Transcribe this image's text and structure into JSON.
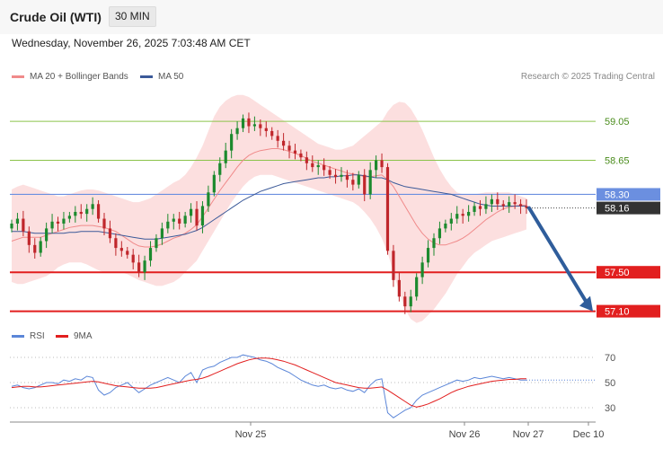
{
  "header": {
    "title": "Crude Oil (WTI)",
    "interval": "30 MIN",
    "datetime": "Wednesday, November 26, 2025 7:03:48 AM CET"
  },
  "legend": [
    {
      "label": "MA 20 + Bollinger Bands",
      "color": "#f08a8a"
    },
    {
      "label": "MA 50",
      "color": "#3c5a99"
    }
  ],
  "credit": "Research © 2025 Trading Central",
  "rsi_legend": [
    {
      "label": "RSI",
      "color": "#5b86d8"
    },
    {
      "label": "9MA",
      "color": "#e21f1f"
    }
  ],
  "colors": {
    "up": "#1c8a2e",
    "down": "#c0262b",
    "band": "#fcd9d9",
    "ma20": "#f08a8a",
    "ma50": "#3c5a99",
    "resistance": "#8bc34a",
    "support": "#e21f1f",
    "pivot": "#6b8fe0",
    "arrow": "#2f5d9b"
  },
  "chart_data": [
    {
      "type": "candlestick",
      "title": "Crude Oil (WTI)",
      "interval": "30 MIN",
      "x_ticks": [
        "Nov 25",
        "Nov 26",
        "Nov 27",
        "Dec 10"
      ],
      "ylim": [
        56.93,
        59.42
      ],
      "levels": [
        {
          "value": 59.05,
          "label": "59.05",
          "kind": "resistance"
        },
        {
          "value": 58.65,
          "label": "58.65",
          "kind": "resistance"
        },
        {
          "value": 58.3,
          "label": "58.30",
          "kind": "pivot"
        },
        {
          "value": 57.5,
          "label": "57.50",
          "kind": "support"
        },
        {
          "value": 57.1,
          "label": "57.10",
          "kind": "support"
        }
      ],
      "last_price": {
        "value": 58.16,
        "label": "58.16"
      },
      "forecast_arrow": {
        "from": 58.16,
        "to": 57.1
      },
      "closes": [
        58.0,
        58.05,
        57.92,
        57.78,
        57.7,
        57.82,
        57.95,
        58.02,
        58.0,
        58.05,
        58.08,
        58.12,
        58.1,
        58.15,
        58.2,
        58.05,
        57.95,
        57.85,
        57.75,
        57.72,
        57.68,
        57.6,
        57.5,
        57.62,
        57.75,
        57.85,
        57.95,
        58.02,
        58.05,
        58.0,
        58.08,
        58.15,
        57.98,
        58.18,
        58.32,
        58.5,
        58.62,
        58.75,
        58.92,
        58.98,
        59.08,
        59.0,
        59.02,
        58.98,
        58.95,
        58.9,
        58.85,
        58.8,
        58.75,
        58.72,
        58.68,
        58.62,
        58.58,
        58.6,
        58.55,
        58.5,
        58.48,
        58.5,
        58.45,
        58.4,
        58.5,
        58.3,
        58.55,
        58.65,
        58.58,
        57.72,
        57.42,
        57.25,
        57.15,
        57.25,
        57.45,
        57.6,
        57.75,
        57.85,
        57.95,
        58.0,
        58.05,
        58.1,
        58.08,
        58.12,
        58.18,
        58.15,
        58.2,
        58.25,
        58.2,
        58.18,
        58.22,
        58.2,
        58.18,
        58.16
      ],
      "ma20": [
        57.82,
        57.84,
        57.86,
        57.86,
        57.86,
        57.86,
        57.88,
        57.9,
        57.92,
        57.94,
        57.96,
        57.97,
        57.98,
        57.98,
        57.98,
        57.97,
        57.96,
        57.94,
        57.92,
        57.88,
        57.84,
        57.8,
        57.77,
        57.76,
        57.76,
        57.77,
        57.79,
        57.82,
        57.85,
        57.87,
        57.9,
        57.94,
        57.99,
        58.07,
        58.16,
        58.25,
        58.34,
        58.42,
        58.5,
        58.58,
        58.65,
        58.7,
        58.73,
        58.75,
        58.76,
        58.77,
        58.77,
        58.76,
        58.74,
        58.72,
        58.7,
        58.67,
        58.64,
        58.62,
        58.6,
        58.58,
        58.56,
        58.54,
        58.52,
        58.51,
        58.5,
        58.48,
        58.48,
        58.49,
        58.5,
        58.45,
        58.38,
        58.28,
        58.18,
        58.08,
        57.98,
        57.9,
        57.84,
        57.8,
        57.78,
        57.78,
        57.8,
        57.82,
        57.85,
        57.89,
        57.94,
        57.99,
        58.04,
        58.08,
        58.12,
        58.15,
        58.17,
        58.18,
        58.19,
        58.19
      ],
      "ma50": [
        57.92,
        57.92,
        57.92,
        57.91,
        57.9,
        57.9,
        57.9,
        57.9,
        57.9,
        57.9,
        57.91,
        57.91,
        57.92,
        57.92,
        57.92,
        57.92,
        57.91,
        57.9,
        57.89,
        57.88,
        57.87,
        57.86,
        57.85,
        57.84,
        57.84,
        57.84,
        57.85,
        57.86,
        57.87,
        57.88,
        57.89,
        57.91,
        57.93,
        57.96,
        58.0,
        58.04,
        58.08,
        58.12,
        58.16,
        58.2,
        58.24,
        58.27,
        58.3,
        58.33,
        58.35,
        58.37,
        58.39,
        58.41,
        58.42,
        58.43,
        58.44,
        58.45,
        58.46,
        58.47,
        58.47,
        58.48,
        58.48,
        58.49,
        58.49,
        58.5,
        58.5,
        58.49,
        58.48,
        58.47,
        58.47,
        58.45,
        58.42,
        58.4,
        58.38,
        58.37,
        58.36,
        58.35,
        58.34,
        58.33,
        58.32,
        58.31,
        58.3,
        58.28,
        58.26,
        58.24,
        58.22,
        58.2,
        58.19,
        58.18,
        58.18,
        58.18,
        58.18,
        58.18,
        58.18,
        58.18
      ],
      "bb_upper": [
        58.35,
        58.38,
        58.4,
        58.38,
        58.36,
        58.34,
        58.32,
        58.3,
        58.28,
        58.28,
        58.3,
        58.32,
        58.34,
        58.35,
        58.35,
        58.34,
        58.32,
        58.3,
        58.28,
        58.26,
        58.24,
        58.22,
        58.22,
        58.24,
        58.26,
        58.3,
        58.34,
        58.38,
        58.42,
        58.45,
        58.5,
        58.58,
        58.68,
        58.8,
        58.95,
        59.1,
        59.2,
        59.26,
        59.3,
        59.32,
        59.32,
        59.3,
        59.26,
        59.22,
        59.18,
        59.14,
        59.1,
        59.06,
        59.02,
        58.98,
        58.94,
        58.9,
        58.86,
        58.82,
        58.8,
        58.78,
        58.76,
        58.76,
        58.78,
        58.8,
        58.85,
        58.9,
        58.95,
        59.0,
        59.05,
        59.15,
        59.22,
        59.25,
        59.24,
        59.18,
        59.08,
        58.96,
        58.82,
        58.68,
        58.56,
        58.46,
        58.38,
        58.32,
        58.3,
        58.3,
        58.3,
        58.31,
        58.32,
        58.32,
        58.32,
        58.32,
        58.32,
        58.3,
        58.28,
        58.26
      ],
      "bb_lower": [
        57.4,
        57.38,
        57.38,
        57.4,
        57.42,
        57.44,
        57.46,
        57.5,
        57.55,
        57.58,
        57.6,
        57.6,
        57.6,
        57.58,
        57.55,
        57.52,
        57.5,
        57.5,
        57.5,
        57.5,
        57.48,
        57.45,
        57.42,
        57.4,
        57.38,
        57.36,
        57.36,
        57.38,
        57.4,
        57.44,
        57.5,
        57.56,
        57.62,
        57.72,
        57.82,
        57.92,
        58.02,
        58.12,
        58.22,
        58.3,
        58.38,
        58.44,
        58.48,
        58.5,
        58.5,
        58.5,
        58.48,
        58.46,
        58.44,
        58.42,
        58.4,
        58.38,
        58.36,
        58.34,
        58.32,
        58.3,
        58.28,
        58.26,
        58.24,
        58.22,
        58.18,
        58.12,
        58.05,
        57.96,
        57.85,
        57.7,
        57.5,
        57.3,
        57.12,
        57.02,
        56.98,
        57.0,
        57.06,
        57.12,
        57.2,
        57.28,
        57.38,
        57.48,
        57.56,
        57.64,
        57.7,
        57.74,
        57.78,
        57.82,
        57.84,
        57.86,
        57.88,
        57.9,
        57.92,
        57.94
      ]
    },
    {
      "type": "line",
      "title": "RSI",
      "ylim": [
        20,
        80
      ],
      "y_ticks": [
        70,
        50,
        30
      ],
      "series": [
        {
          "name": "RSI",
          "values": [
            47,
            48,
            46,
            45,
            46,
            48,
            50,
            50,
            49,
            52,
            51,
            53,
            52,
            55,
            54,
            44,
            40,
            42,
            46,
            48,
            50,
            46,
            42,
            45,
            48,
            50,
            52,
            54,
            52,
            50,
            55,
            58,
            50,
            60,
            62,
            63,
            66,
            68,
            70,
            70,
            72,
            71,
            70,
            68,
            67,
            65,
            62,
            60,
            58,
            55,
            52,
            50,
            48,
            47,
            48,
            46,
            45,
            46,
            44,
            43,
            45,
            42,
            48,
            52,
            53,
            26,
            22,
            25,
            28,
            30,
            36,
            40,
            42,
            44,
            46,
            48,
            50,
            52,
            51,
            52,
            54,
            53,
            54,
            55,
            54,
            53,
            54,
            53,
            52,
            52
          ]
        },
        {
          "name": "9MA",
          "values": [
            46,
            46.5,
            47,
            47,
            46.5,
            46.5,
            47,
            47.5,
            48,
            48.5,
            49,
            49.5,
            50,
            50.5,
            51,
            50.5,
            49.5,
            48.5,
            47.5,
            47,
            46.5,
            46,
            45.5,
            45.5,
            45.5,
            46,
            47,
            48,
            49,
            50,
            51,
            52,
            52.5,
            53.5,
            55,
            57,
            59,
            61,
            63,
            65,
            66.5,
            68,
            69,
            69.5,
            69.5,
            69,
            68,
            67,
            65.5,
            64,
            62,
            60,
            58,
            56,
            54,
            52,
            50,
            49,
            48,
            47,
            46,
            45.5,
            45.5,
            46,
            46.5,
            44,
            41,
            38,
            35,
            32,
            30.5,
            31.5,
            33,
            35,
            37,
            39.5,
            42,
            44,
            45.5,
            47,
            48,
            49,
            50,
            51,
            51.5,
            52,
            52.5,
            52.5,
            53,
            53
          ]
        }
      ]
    }
  ]
}
